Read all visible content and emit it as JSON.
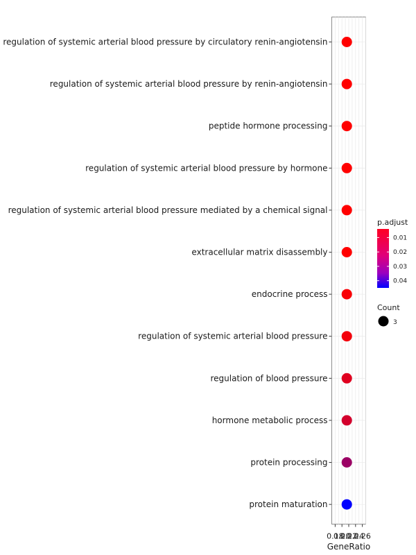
{
  "chart_data": {
    "type": "scatter",
    "xlabel": "GeneRatio",
    "ylabel": "",
    "x_ticks": [
      "0.18",
      "0.20",
      "0.22",
      "0.24",
      "0.26"
    ],
    "xlim": [
      0.17,
      0.27
    ],
    "categories": [
      "regulation of systemic arterial blood pressure by circulatory renin-angiotensin",
      "regulation of systemic arterial blood pressure by renin-angiotensin",
      "peptide hormone processing",
      "regulation of systemic arterial blood pressure by hormone",
      "regulation of systemic arterial blood pressure mediated by a chemical signal",
      "extracellular matrix disassembly",
      "endocrine process",
      "regulation of systemic arterial blood pressure",
      "regulation of blood pressure",
      "hormone metabolic process",
      "protein processing",
      "protein maturation"
    ],
    "gene_ratio": [
      0.2143,
      0.2143,
      0.2143,
      0.2143,
      0.2143,
      0.2143,
      0.2143,
      0.2143,
      0.2143,
      0.2143,
      0.2143,
      0.2143
    ],
    "p_adjust": [
      0.004,
      0.004,
      0.004,
      0.004,
      0.004,
      0.004,
      0.005,
      0.006,
      0.009,
      0.011,
      0.02,
      0.045
    ],
    "count": [
      3,
      3,
      3,
      3,
      3,
      3,
      3,
      3,
      3,
      3,
      3,
      3
    ],
    "grid": true,
    "colorbar": {
      "title": "p.adjust",
      "ticks": [
        "0.01",
        "0.02",
        "0.03",
        "0.04"
      ],
      "tick_values": [
        0.01,
        0.02,
        0.03,
        0.04
      ],
      "range": [
        0.004,
        0.045
      ],
      "low_color": "#FF0000",
      "high_color": "#0000FF"
    },
    "size_legend": {
      "title": "Count",
      "entries": [
        "3"
      ]
    },
    "legend_position": "right"
  }
}
